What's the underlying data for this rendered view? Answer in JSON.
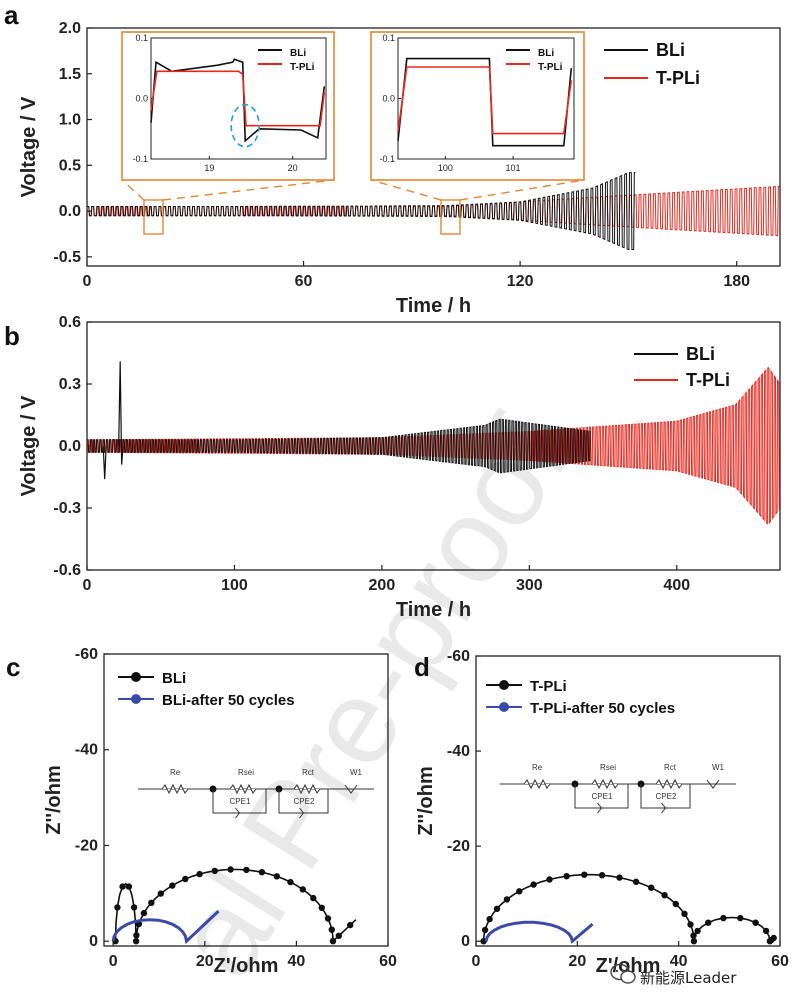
{
  "figure": {
    "watermark_text": "al Pre-proof",
    "brand_text": "新能源Leader",
    "brand_icon": "wechat-icon"
  },
  "colors": {
    "bli": "#111111",
    "tpli": "#e8281e",
    "bli_after": "#3a4aa8",
    "tpli_after": "#3a4aa8",
    "inset_frame": "#e8862e",
    "ring": "#1ea0d6"
  },
  "chart_data": [
    {
      "panel": "a",
      "type": "line",
      "xlabel": "Time / h",
      "ylabel": "Voltage / V",
      "xlim": [
        0,
        192
      ],
      "ylim": [
        -0.6,
        2.0
      ],
      "xticks": [
        "0",
        "60",
        "120",
        "180"
      ],
      "yticks": [
        "2.0",
        "1.5",
        "1.0",
        "0.5",
        "0.0",
        "-0.5"
      ],
      "series": [
        {
          "name": "BLi",
          "description": "symmetric cycling, amplitude ~0.05 V rising to ~0.4 V near 150 h, ends ~152 h",
          "envelope": {
            "t": [
              0,
              40,
              80,
              100,
              120,
              140,
              150,
              152
            ],
            "amp": [
              0.05,
              0.05,
              0.055,
              0.06,
              0.1,
              0.25,
              0.42,
              0.42
            ]
          }
        },
        {
          "name": "T-PLi",
          "description": "symmetric cycling, amplitude ~0.05 V rising to ~0.27 V at 192 h",
          "envelope": {
            "t": [
              0,
              60,
              100,
              140,
              192
            ],
            "amp": [
              0.05,
              0.05,
              0.05,
              0.15,
              0.27
            ]
          }
        }
      ],
      "insets": [
        {
          "xlim": [
            18.3,
            20.4
          ],
          "ylim": [
            -0.1,
            0.1
          ],
          "xticks": [
            "19",
            "20"
          ],
          "yticks": [
            "0.1",
            "0.0",
            "-0.1"
          ],
          "legend": [
            "BLi",
            "T-PLi"
          ]
        },
        {
          "xlim": [
            99.3,
            101.9
          ],
          "ylim": [
            -0.1,
            0.1
          ],
          "xticks": [
            "100",
            "101"
          ],
          "yticks": [
            "0.1",
            "0.0",
            "-0.1"
          ],
          "legend": [
            "BLi",
            "T-PLi"
          ]
        }
      ]
    },
    {
      "panel": "b",
      "type": "line",
      "xlabel": "Time / h",
      "ylabel": "Voltage / V",
      "xlim": [
        0,
        470
      ],
      "ylim": [
        -0.6,
        0.6
      ],
      "xticks": [
        "0",
        "100",
        "200",
        "300",
        "400"
      ],
      "yticks": [
        "0.6",
        "0.3",
        "0.0",
        "-0.3",
        "-0.6"
      ],
      "series": [
        {
          "name": "BLi",
          "description": "amplitude ~0.03 V growing to ~0.07 V, spike ~0.41 V near 22 h, burst ~0.13 V near 275 h, ends ~342 h",
          "envelope": {
            "t": [
              0,
              100,
              200,
              270,
              280,
              342
            ],
            "amp": [
              0.03,
              0.03,
              0.04,
              0.1,
              0.13,
              0.07
            ]
          }
        },
        {
          "name": "T-PLi",
          "description": "amplitude ~0.03 V rising to ~0.38 V near 462 h",
          "envelope": {
            "t": [
              0,
              200,
              300,
              400,
              440,
              462,
              470
            ],
            "amp": [
              0.03,
              0.04,
              0.07,
              0.12,
              0.2,
              0.38,
              0.3
            ]
          }
        }
      ]
    },
    {
      "panel": "c",
      "type": "scatter",
      "xlabel": "Z'/ohm",
      "ylabel": "Z''/ohm",
      "xlim": [
        -2,
        60
      ],
      "ylim": [
        1,
        -60
      ],
      "xticks": [
        "0",
        "20",
        "40",
        "60"
      ],
      "yticks": [
        "-60",
        "-40",
        "-20",
        "0"
      ],
      "circuit_labels": [
        "Re",
        "Rsei",
        "Rct",
        "W1",
        "CPE1",
        "CPE2"
      ],
      "series": [
        {
          "name": "BLi",
          "type": "nyquist",
          "Rs": 0.5,
          "semicircles": [
            [
              0.5,
              5,
              12
            ],
            [
              5,
              48,
              15
            ]
          ],
          "tail_end": 53
        },
        {
          "name": "BLi-after 50 cycles",
          "type": "nyquist",
          "Rs": 0,
          "semicircles": [
            [
              0,
              16,
              4.5
            ]
          ],
          "tail_end": 23
        }
      ]
    },
    {
      "panel": "d",
      "type": "scatter",
      "xlabel": "Z'/ohm",
      "ylabel": "Z''/ohm",
      "xlim": [
        0,
        60
      ],
      "ylim": [
        1,
        -60
      ],
      "xticks": [
        "0",
        "20",
        "40",
        "60"
      ],
      "yticks": [
        "-60",
        "-40",
        "-20",
        "0"
      ],
      "circuit_labels": [
        "Re",
        "Rsei",
        "Rct",
        "W1",
        "CPE1",
        "CPE2"
      ],
      "series": [
        {
          "name": "T-PLi",
          "type": "nyquist",
          "Rs": 1.5,
          "semicircles": [
            [
              1.5,
              43,
              14
            ],
            [
              43,
              58,
              5
            ]
          ],
          "tail_end": 59
        },
        {
          "name": "T-PLi-after 50 cycles",
          "type": "nyquist",
          "Rs": 2,
          "semicircles": [
            [
              2,
              19,
              4
            ]
          ],
          "tail_end": 23
        }
      ]
    }
  ],
  "labels": {
    "panel_a": "a",
    "panel_b": "b",
    "panel_c": "c",
    "panel_d": "d"
  }
}
